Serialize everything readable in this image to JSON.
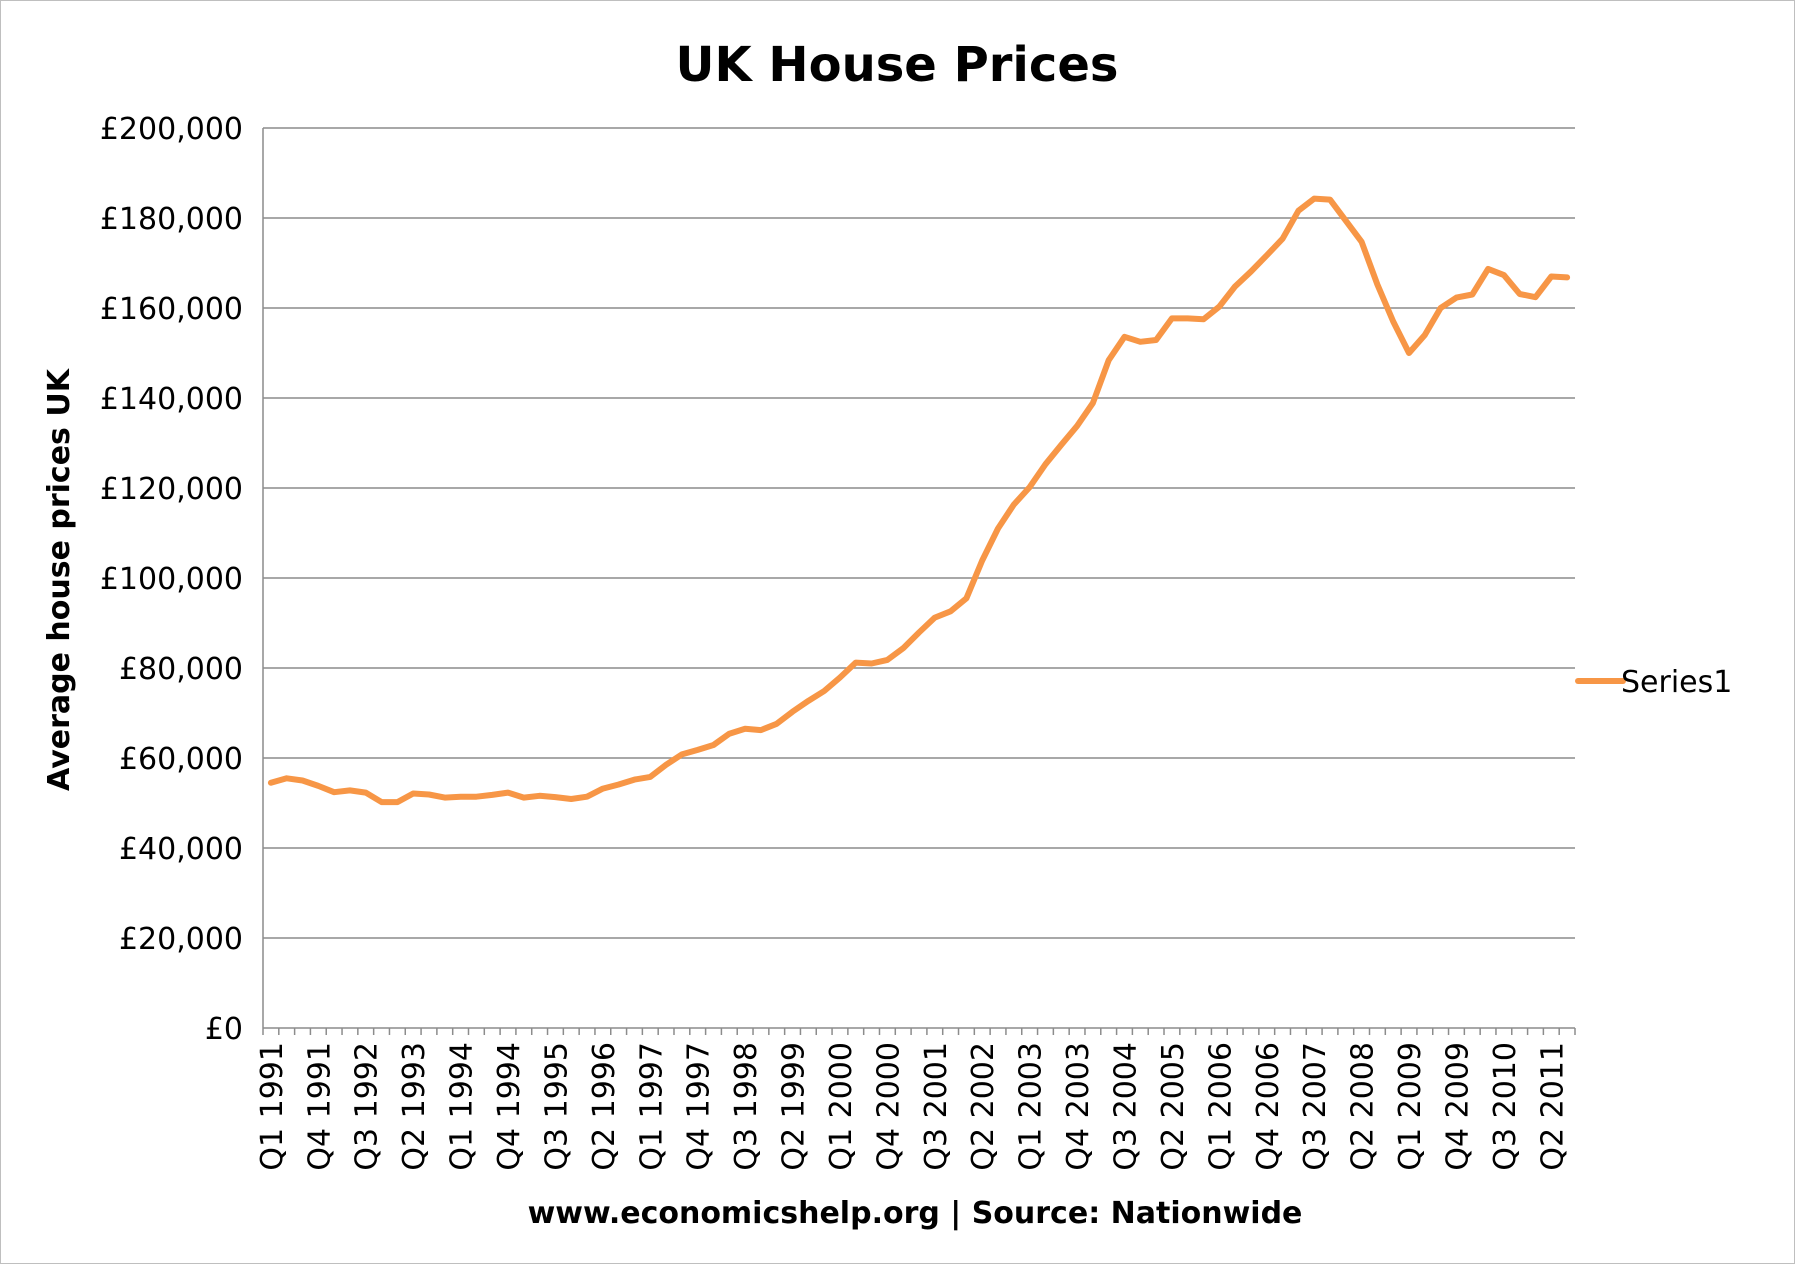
{
  "chart_data": {
    "type": "line",
    "title": "UK House Prices",
    "xlabel": "www.economicshelp.org | Source: Nationwide",
    "ylabel": "Average house prices UK",
    "ylim": [
      0,
      200000
    ],
    "yticks": [
      "£0",
      "£20,000",
      "£40,000",
      "£60,000",
      "£80,000",
      "£100,000",
      "£120,000",
      "£140,000",
      "£160,000",
      "£180,000",
      "£200,000"
    ],
    "xtick_labels": [
      "Q1 1991",
      "Q4 1991",
      "Q3 1992",
      "Q2 1993",
      "Q1 1994",
      "Q4 1994",
      "Q3 1995",
      "Q2 1996",
      "Q1 1997",
      "Q4 1997",
      "Q3 1998",
      "Q2 1999",
      "Q1 2000",
      "Q4 2000",
      "Q3 2001",
      "Q2 2002",
      "Q1 2003",
      "Q4 2003",
      "Q3 2004",
      "Q2 2005",
      "Q1 2006",
      "Q4 2006",
      "Q3 2007",
      "Q2 2008",
      "Q1 2009",
      "Q4 2009",
      "Q3 2010",
      "Q2 2011"
    ],
    "legend_position": "right",
    "grid": true,
    "series": [
      {
        "name": "Series1",
        "color": "#f79646",
        "x": [
          "Q1 1991",
          "Q2 1991",
          "Q3 1991",
          "Q4 1991",
          "Q1 1992",
          "Q2 1992",
          "Q3 1992",
          "Q4 1992",
          "Q1 1993",
          "Q2 1993",
          "Q3 1993",
          "Q4 1993",
          "Q1 1994",
          "Q2 1994",
          "Q3 1994",
          "Q4 1994",
          "Q1 1995",
          "Q2 1995",
          "Q3 1995",
          "Q4 1995",
          "Q1 1996",
          "Q2 1996",
          "Q3 1996",
          "Q4 1996",
          "Q1 1997",
          "Q2 1997",
          "Q3 1997",
          "Q4 1997",
          "Q1 1998",
          "Q2 1998",
          "Q3 1998",
          "Q4 1998",
          "Q1 1999",
          "Q2 1999",
          "Q3 1999",
          "Q4 1999",
          "Q1 2000",
          "Q2 2000",
          "Q3 2000",
          "Q4 2000",
          "Q1 2001",
          "Q2 2001",
          "Q3 2001",
          "Q4 2001",
          "Q1 2002",
          "Q2 2002",
          "Q3 2002",
          "Q4 2002",
          "Q1 2003",
          "Q2 2003",
          "Q3 2003",
          "Q4 2003",
          "Q1 2004",
          "Q2 2004",
          "Q3 2004",
          "Q4 2004",
          "Q1 2005",
          "Q2 2005",
          "Q3 2005",
          "Q4 2005",
          "Q1 2006",
          "Q2 2006",
          "Q3 2006",
          "Q4 2006",
          "Q1 2007",
          "Q2 2007",
          "Q3 2007",
          "Q4 2007",
          "Q1 2008",
          "Q2 2008",
          "Q3 2008",
          "Q4 2008",
          "Q1 2009",
          "Q2 2009",
          "Q3 2009",
          "Q4 2009",
          "Q1 2010",
          "Q2 2010",
          "Q3 2010",
          "Q4 2010",
          "Q1 2011",
          "Q2 2011",
          "Q3 2011"
        ],
        "values": [
          54500,
          55500,
          55000,
          53800,
          52400,
          52800,
          52300,
          50200,
          50200,
          52100,
          51900,
          51200,
          51400,
          51400,
          51800,
          52300,
          51200,
          51600,
          51300,
          50900,
          51400,
          53200,
          54100,
          55200,
          55800,
          58500,
          60800,
          61800,
          62900,
          65400,
          66500,
          66200,
          67600,
          70300,
          72700,
          74900,
          77900,
          81200,
          81000,
          81800,
          84400,
          87900,
          91200,
          92600,
          95500,
          103900,
          111000,
          116300,
          120200,
          125300,
          129600,
          133800,
          138900,
          148400,
          153600,
          152500,
          152900,
          157700,
          157700,
          157500,
          160300,
          164800,
          168100,
          171700,
          175400,
          181600,
          184300,
          184100,
          179400,
          174700,
          165200,
          157000,
          150000,
          154000,
          160000,
          162300,
          163000,
          168700,
          167300,
          163100,
          162400,
          167000,
          166800
        ]
      }
    ]
  }
}
